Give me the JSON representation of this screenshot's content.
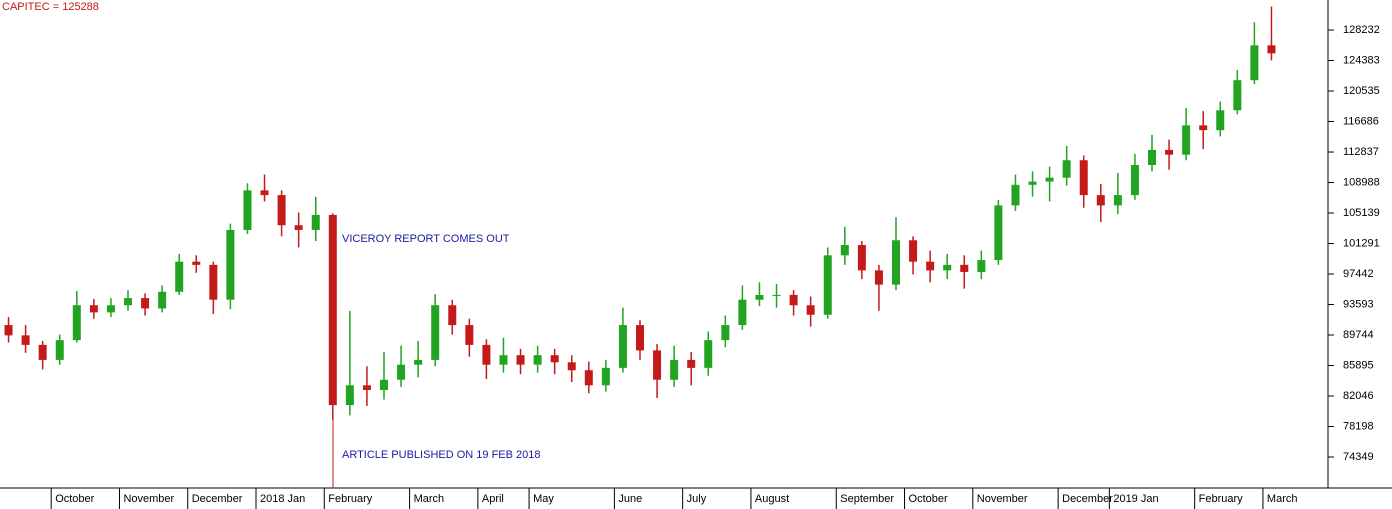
{
  "chart_data": {
    "type": "candlestick",
    "title": "CAPITEC = 125288",
    "annotations": [
      "VICEROY REPORT COMES OUT",
      "ARTICLE PUBLISHED ON 19 FEB 2018"
    ],
    "categories": [
      null,
      null,
      null,
      "October",
      null,
      null,
      null,
      "November",
      null,
      null,
      null,
      "December",
      null,
      null,
      null,
      "2018 Jan",
      null,
      null,
      null,
      "February",
      null,
      null,
      null,
      null,
      "March",
      null,
      null,
      null,
      "April",
      null,
      null,
      "May",
      null,
      null,
      null,
      null,
      "June",
      null,
      null,
      null,
      "July",
      null,
      null,
      null,
      "August",
      null,
      null,
      null,
      null,
      "September",
      null,
      null,
      null,
      "October",
      null,
      null,
      null,
      "November",
      null,
      null,
      null,
      null,
      "December",
      null,
      null,
      "2019 Jan",
      null,
      null,
      null,
      null,
      "February",
      null,
      null,
      null,
      "March"
    ],
    "open": [
      91000,
      89700,
      88500,
      86600,
      89100,
      93500,
      92600,
      93500,
      94400,
      93100,
      95200,
      99000,
      98600,
      94200,
      103000,
      108000,
      107400,
      103600,
      103000,
      104900,
      80900,
      83400,
      82800,
      84100,
      86000,
      86600,
      93500,
      91000,
      88500,
      86000,
      87200,
      86000,
      87200,
      86300,
      85300,
      83400,
      85600,
      91000,
      87800,
      84100,
      86600,
      85600,
      89100,
      91000,
      94200,
      94800,
      94800,
      93500,
      92300,
      99800,
      101100,
      97900,
      96100,
      101700,
      99000,
      97900,
      98600,
      97700,
      99200,
      106100,
      108700,
      109100,
      109600,
      111800,
      107400,
      106100,
      107400,
      111200,
      113100,
      112500,
      116200,
      115600,
      118100,
      121900,
      126300
    ],
    "high": [
      92000,
      91000,
      89000,
      89800,
      95300,
      94300,
      94400,
      95400,
      95000,
      96000,
      100000,
      99800,
      99000,
      103800,
      108900,
      110000,
      108000,
      105200,
      107200,
      105100,
      92800,
      85800,
      87600,
      88400,
      89000,
      94900,
      94200,
      91800,
      89200,
      89400,
      88000,
      88400,
      88000,
      87200,
      86400,
      86600,
      93200,
      91600,
      88600,
      88400,
      87600,
      90200,
      92200,
      96000,
      96400,
      96200,
      95400,
      94600,
      100800,
      103400,
      101600,
      98600,
      104600,
      102200,
      100400,
      100000,
      99800,
      100400,
      106800,
      110000,
      110400,
      111000,
      113600,
      112400,
      108800,
      110200,
      112600,
      115000,
      114400,
      118400,
      118000,
      119200,
      123200,
      129200,
      131200
    ],
    "low": [
      88800,
      87500,
      85400,
      86000,
      88800,
      91800,
      92000,
      92800,
      92200,
      92600,
      94800,
      97600,
      92400,
      93000,
      102500,
      106600,
      102200,
      100800,
      101600,
      79000,
      79600,
      80800,
      81600,
      83200,
      84400,
      85800,
      89800,
      87000,
      84200,
      85000,
      84800,
      85000,
      84800,
      83800,
      82400,
      82600,
      85000,
      86600,
      81800,
      83200,
      83400,
      84600,
      88200,
      90400,
      93400,
      93200,
      92200,
      90800,
      91800,
      98600,
      96800,
      92800,
      95400,
      97400,
      96400,
      96800,
      95600,
      96800,
      98600,
      105400,
      107200,
      106600,
      108600,
      105800,
      104000,
      105000,
      106800,
      110400,
      110600,
      111800,
      113200,
      114800,
      117600,
      121400,
      124400
    ],
    "close": [
      89700,
      88500,
      86600,
      89100,
      93500,
      92600,
      93500,
      94400,
      93100,
      95200,
      99000,
      98600,
      94200,
      103000,
      108000,
      107400,
      103600,
      103000,
      104900,
      80900,
      83400,
      82800,
      84100,
      86000,
      86600,
      93500,
      91000,
      88500,
      86000,
      87200,
      86000,
      87200,
      86300,
      85300,
      83400,
      85600,
      91000,
      87800,
      84100,
      86600,
      85600,
      89100,
      91000,
      94200,
      94800,
      94800,
      93500,
      92300,
      99800,
      101100,
      97900,
      96100,
      101700,
      99000,
      97900,
      98600,
      97700,
      99200,
      106100,
      108700,
      109100,
      109600,
      111800,
      107400,
      106100,
      107400,
      111200,
      113100,
      112500,
      116200,
      115600,
      118100,
      121900,
      126300,
      125288
    ],
    "up_color": "#22a322",
    "down_color": "#c41a1a",
    "ylim": [
      70440,
      132020
    ],
    "yticks": [
      74349,
      78198,
      82046,
      85895,
      89744,
      93593,
      97442,
      101291,
      105139,
      108988,
      112837,
      116686,
      120535,
      124383,
      128232
    ]
  }
}
